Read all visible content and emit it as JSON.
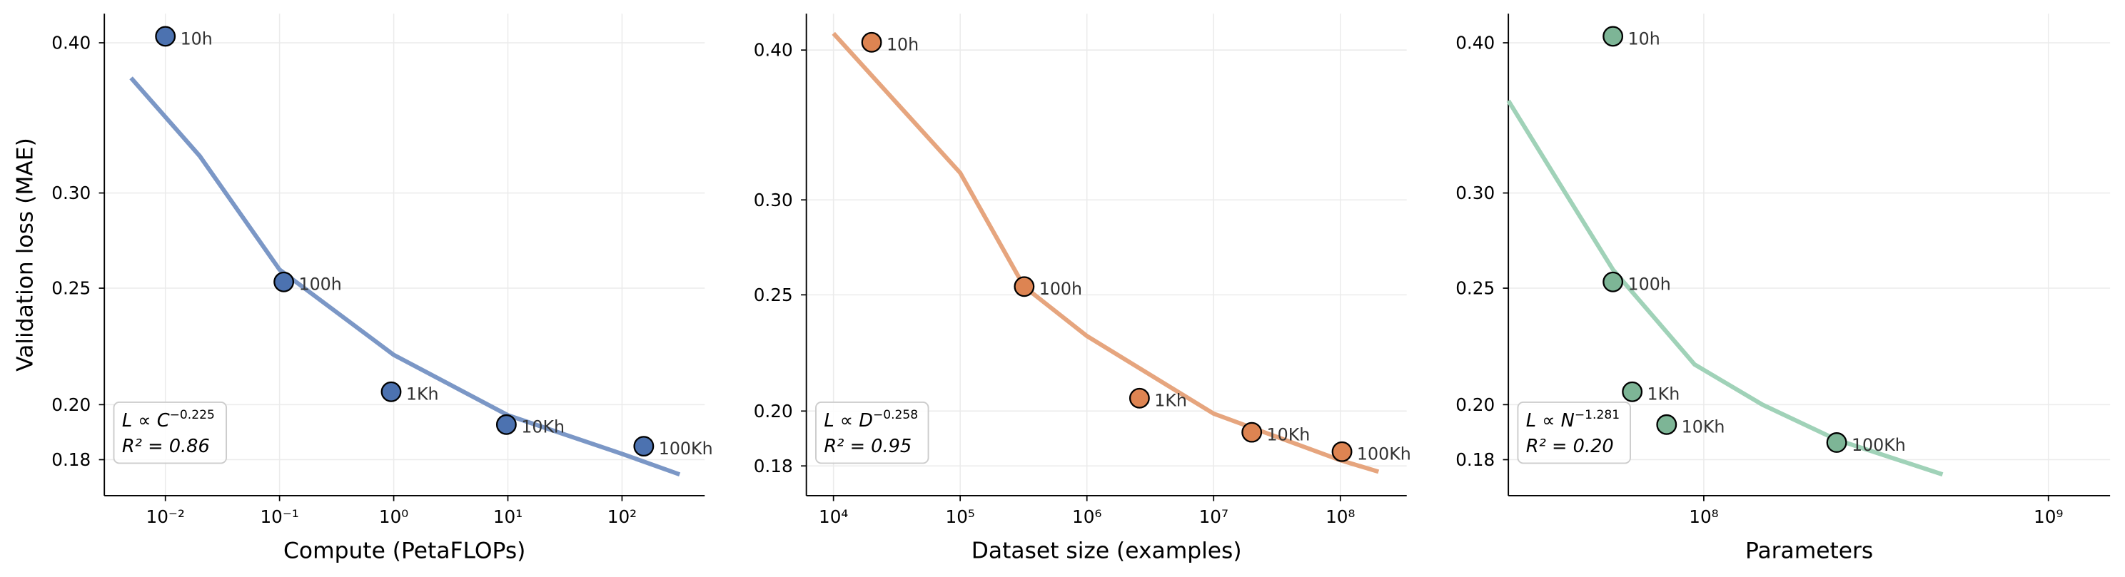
{
  "chart_data": [
    {
      "type": "scatter",
      "ylabel": "Validation loss (MAE)",
      "xlabel": "Compute (PetaFLOPs)",
      "log_x": true,
      "log_y": true,
      "grid": true,
      "xlim": [
        0.00292,
        530
      ],
      "ylim": [
        0.168,
        0.423
      ],
      "xticks": [
        {
          "value": 0.01,
          "label": "10⁻²"
        },
        {
          "value": 0.1,
          "label": "10⁻¹"
        },
        {
          "value": 1,
          "label": "10⁰"
        },
        {
          "value": 10,
          "label": "10¹"
        },
        {
          "value": 100,
          "label": "10²"
        }
      ],
      "yticks": [
        {
          "value": 0.18,
          "label": "0.18"
        },
        {
          "value": 0.2,
          "label": "0.20"
        },
        {
          "value": 0.25,
          "label": "0.25"
        },
        {
          "value": 0.3,
          "label": "0.30"
        },
        {
          "value": 0.4,
          "label": "0.40"
        }
      ],
      "color": "#4c72b0",
      "x": [
        0.01,
        0.109,
        0.95,
        9.7,
        155
      ],
      "values": [
        0.405,
        0.253,
        0.205,
        0.1925,
        0.1847
      ],
      "point_labels": [
        "10h",
        "100h",
        "1Kh",
        "10Kh",
        "100Kh"
      ],
      "fit": {
        "color": "#7b97c6",
        "x": [
          0.005,
          0.02,
          0.1,
          1,
          10,
          100,
          320
        ],
        "values": [
          0.374,
          0.322,
          0.259,
          0.22,
          0.196,
          0.182,
          0.175
        ]
      },
      "annotation": {
        "text": "L ∝ C",
        "exponent": "−0.225",
        "r2": "R² = 0.86"
      }
    },
    {
      "type": "scatter",
      "xlabel": "Dataset size (examples)",
      "log_x": true,
      "log_y": true,
      "grid": true,
      "xlim": [
        6110,
        334000000
      ],
      "ylim": [
        0.17,
        0.429
      ],
      "xticks": [
        {
          "value": 10000,
          "label": "10⁴"
        },
        {
          "value": 100000,
          "label": "10⁵"
        },
        {
          "value": 1000000,
          "label": "10⁶"
        },
        {
          "value": 10000000,
          "label": "10⁷"
        },
        {
          "value": 100000000,
          "label": "10⁸"
        }
      ],
      "yticks": [
        {
          "value": 0.18,
          "label": "0.18"
        },
        {
          "value": 0.2,
          "label": "0.20"
        },
        {
          "value": 0.25,
          "label": "0.25"
        },
        {
          "value": 0.3,
          "label": "0.30"
        },
        {
          "value": 0.4,
          "label": "0.40"
        }
      ],
      "color": "#dd8452",
      "x": [
        20000,
        320000,
        2600000,
        20000000,
        103000000
      ],
      "values": [
        0.406,
        0.254,
        0.205,
        0.192,
        0.185
      ],
      "point_labels": [
        "10h",
        "100h",
        "1Kh",
        "10Kh",
        "100Kh"
      ],
      "fit": {
        "color": "#e6a57e",
        "x": [
          10000,
          100000,
          320000,
          1000000,
          10000000,
          100000000,
          200000000
        ],
        "values": [
          0.413,
          0.316,
          0.254,
          0.231,
          0.199,
          0.182,
          0.178
        ]
      },
      "annotation": {
        "text": "L ∝ D",
        "exponent": "−0.258",
        "r2": "R² = 0.95"
      }
    },
    {
      "type": "scatter",
      "xlabel": "Parameters",
      "log_x": true,
      "log_y": true,
      "grid": true,
      "xlim": [
        27100000,
        1510000000
      ],
      "ylim": [
        0.168,
        0.423
      ],
      "xticks": [
        {
          "value": 100000000,
          "label": "10⁸"
        },
        {
          "value": 1000000000,
          "label": "10⁹"
        }
      ],
      "yticks": [
        {
          "value": 0.18,
          "label": "0.18"
        },
        {
          "value": 0.2,
          "label": "0.20"
        },
        {
          "value": 0.25,
          "label": "0.25"
        },
        {
          "value": 0.3,
          "label": "0.30"
        },
        {
          "value": 0.4,
          "label": "0.40"
        }
      ],
      "color": "#7db596",
      "x": [
        54500000,
        54500000,
        62000000,
        78000000,
        243000000
      ],
      "values": [
        0.405,
        0.253,
        0.205,
        0.1925,
        0.186
      ],
      "point_labels": [
        "10h",
        "100h",
        "1Kh",
        "10Kh",
        "100Kh"
      ],
      "fit": {
        "color": "#a0d2b8",
        "x": [
          27100000,
          38000000,
          54500000,
          94000000,
          148000000,
          243000000,
          493000000
        ],
        "values": [
          0.358,
          0.306,
          0.259,
          0.216,
          0.2,
          0.187,
          0.175
        ]
      },
      "annotation": {
        "text": "L ∝ N",
        "exponent": "−1.281",
        "r2": "R² = 0.20"
      }
    }
  ]
}
